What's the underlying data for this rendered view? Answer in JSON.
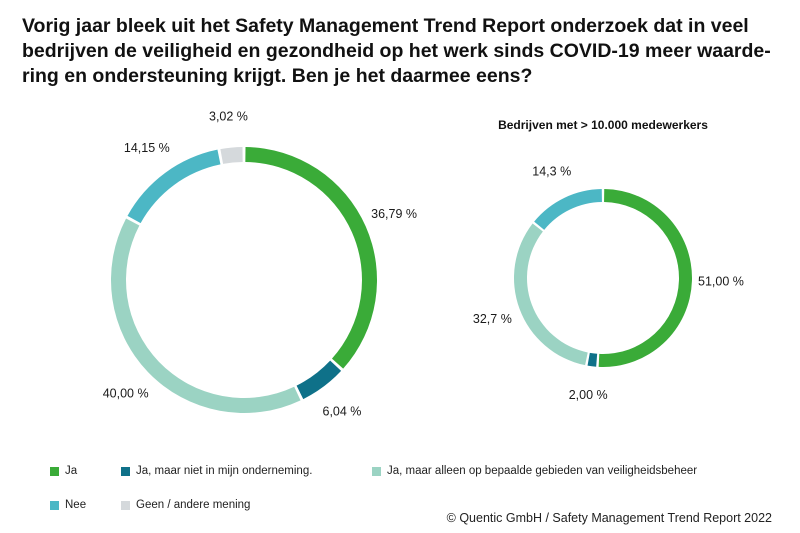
{
  "title_lines": [
    "Vorig jaar bleek uit het Safety Management Trend Report onderzoek dat in veel",
    "bedrijven de veiligheid en gezondheid op het werk sinds COVID-19 meer waarde-",
    "ring en ondersteuning krijgt. Ben je het daarmee eens?"
  ],
  "chart_data": [
    {
      "type": "pie",
      "variant": "donut",
      "title": "",
      "categories": [
        "Ja",
        "Ja, maar niet in mijn onderneming.",
        "Ja, maar alleen op bepaalde gebieden van veiligheidsbeheer",
        "Nee",
        "Geen / andere mening"
      ],
      "values": [
        36.79,
        6.04,
        40.0,
        14.15,
        3.02
      ],
      "value_labels": [
        "36,79 %",
        "6,04 %",
        "40,00 %",
        "14,15 %",
        "3,02 %"
      ],
      "colors": [
        "#3aab38",
        "#0f7189",
        "#9bd3c3",
        "#4cb7c5",
        "#d5d9dc"
      ],
      "legend": "bottom"
    },
    {
      "type": "pie",
      "variant": "donut",
      "title": "Bedrijven met > 10.000 medewerkers",
      "categories": [
        "Ja",
        "Ja, maar niet in mijn onderneming.",
        "Ja, maar alleen op bepaalde gebieden van veiligheidsbeheer",
        "Nee"
      ],
      "values": [
        51.0,
        2.0,
        32.7,
        14.3
      ],
      "value_labels": [
        "51,00 %",
        "2,00 %",
        "32,7 %",
        "14,3 %"
      ],
      "colors": [
        "#3aab38",
        "#0f7189",
        "#9bd3c3",
        "#4cb7c5"
      ],
      "legend": "bottom"
    }
  ],
  "legend_items": [
    {
      "label": "Ja",
      "color": "#3aab38"
    },
    {
      "label": "Ja, maar niet in mijn onderneming.",
      "color": "#0f7189"
    },
    {
      "label": "Ja, maar alleen op bepaalde gebieden van veiligheidsbeheer",
      "color": "#9bd3c3"
    },
    {
      "label": "Nee",
      "color": "#4cb7c5"
    },
    {
      "label": "Geen / andere mening",
      "color": "#d5d9dc"
    }
  ],
  "footer": "© Quentic GmbH / Safety Management Trend Report 2022"
}
